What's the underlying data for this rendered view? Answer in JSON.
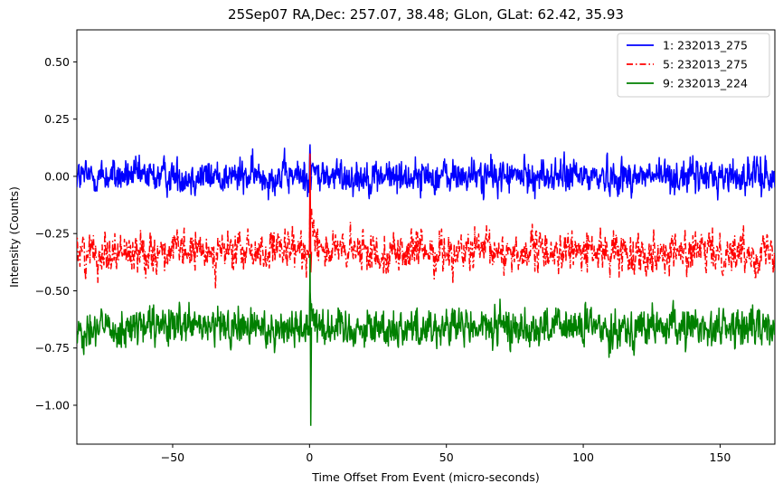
{
  "chart_data": {
    "type": "line",
    "title": "25Sep07 RA,Dec:  257.07,  38.48; GLon, GLat:   62.42,  35.93",
    "xlabel": "Time Offset From Event (micro-seconds)",
    "ylabel": "Intensity (Counts)",
    "xlim": [
      -85,
      170
    ],
    "ylim": [
      -1.17,
      0.64
    ],
    "xticks": [
      -50,
      0,
      50,
      100,
      150
    ],
    "xtick_labels": [
      "−50",
      "0",
      "50",
      "100",
      "150"
    ],
    "yticks": [
      0.5,
      0.25,
      0.0,
      -0.25,
      -0.5,
      -0.75,
      -1.0
    ],
    "ytick_labels": [
      "0.50",
      "0.25",
      "0.00",
      "−0.25",
      "−0.50",
      "−0.75",
      "−1.00"
    ],
    "grid": false,
    "legend_position": "top-right",
    "series": [
      {
        "name": "1: 232013_275",
        "color": "#0000ff",
        "style": "solid",
        "baseline": 0.0,
        "noise": 0.035,
        "event": {
          "x": 0.0,
          "peak": 0.14,
          "trough": -0.06,
          "decay": 1.2
        }
      },
      {
        "name": "5: 232013_275",
        "color": "#ff0000",
        "style": "dashdot",
        "baseline": -0.33,
        "noise": 0.04,
        "event": {
          "x": 0.0,
          "peak": 0.1,
          "trough": -0.42,
          "decay": 2.0
        }
      },
      {
        "name": "9: 232013_224",
        "color": "#008000",
        "style": "solid",
        "baseline": -0.66,
        "noise": 0.04,
        "event": {
          "x": 0.0,
          "peak": -0.34,
          "trough": -1.09,
          "decay": 1.5
        }
      }
    ]
  }
}
